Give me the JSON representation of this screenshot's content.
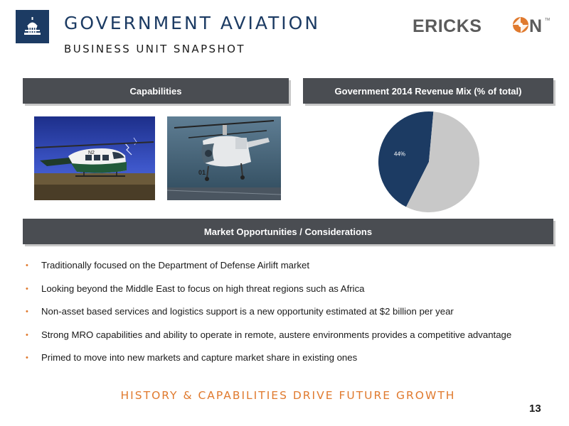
{
  "header": {
    "title": "GOVERNMENT AVIATION",
    "subtitle": "BUSINESS UNIT SNAPSHOT",
    "brand": "ERICKS N",
    "brand_tm": "TM",
    "emblem_icon": "capitol-dome-icon"
  },
  "sections": {
    "capabilities_label": "Capabilities",
    "revenue_label": "Government 2014 Revenue Mix (% of total)",
    "market_label": "Market Opportunities / Considerations"
  },
  "photos": {
    "photo1_tail": "N2",
    "photo2_number": "01"
  },
  "chart_data": {
    "type": "pie",
    "title": "Government 2014 Revenue Mix (% of total)",
    "slices": [
      {
        "label": "44%",
        "value": 44,
        "color": "#1c3b63"
      },
      {
        "label": "",
        "value": 56,
        "color": "#c8c8c8"
      }
    ]
  },
  "bullets": [
    "Traditionally focused on the Department of Defense Airlift market",
    "Looking beyond the Middle East to focus on high threat regions such as Africa",
    "Non-asset based services and logistics support is a new opportunity estimated at $2 billion per year",
    "Strong MRO capabilities and ability to operate in remote, austere environments provides a competitive advantage",
    "Primed to move into new markets and capture market share in existing ones"
  ],
  "footer": {
    "tagline": "HISTORY & CAPABILITIES DRIVE FUTURE GROWTH",
    "page_number": "13"
  },
  "colors": {
    "navy": "#1c3b63",
    "bar_gray": "#4a4d52",
    "accent_orange": "#e07a2e"
  }
}
